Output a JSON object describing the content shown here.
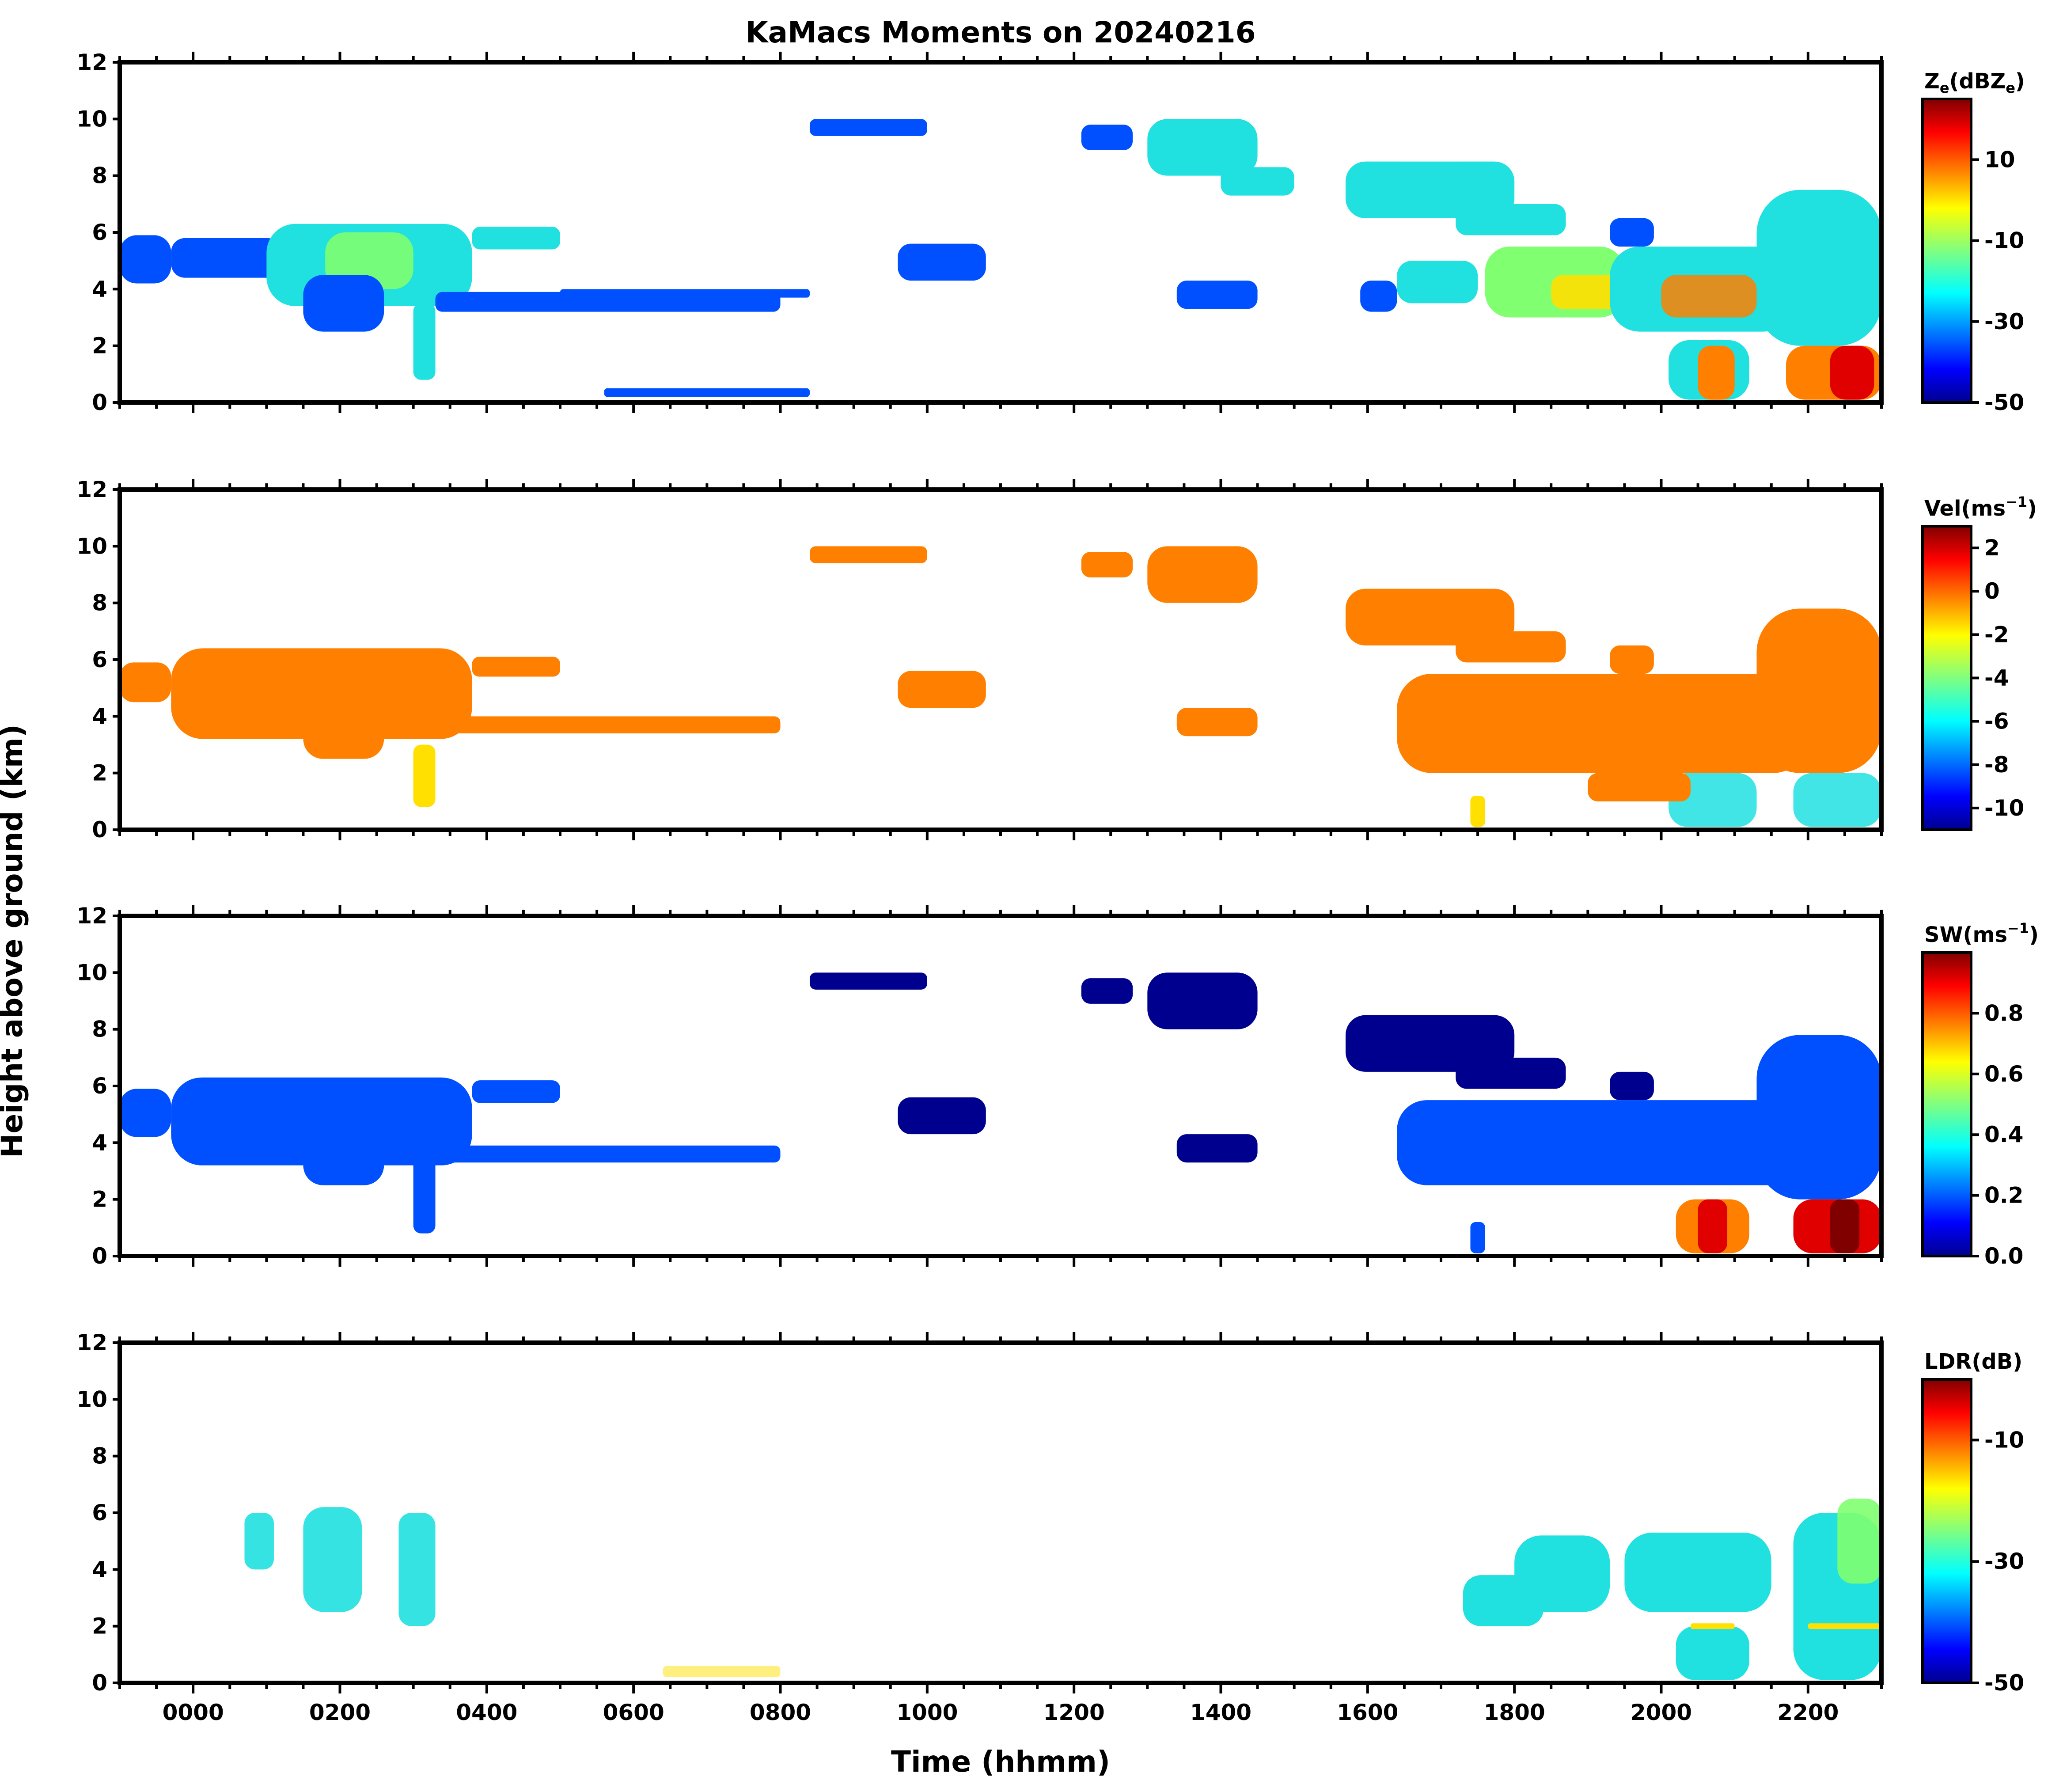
{
  "chart_data": {
    "type": "heatmap",
    "title": "KaMacs Moments on 20240216",
    "xlabel": "Time (hhmm)",
    "ylabel": "Height above ground (km)",
    "x_ticks": [
      "0000",
      "0200",
      "0400",
      "0600",
      "0800",
      "1000",
      "1200",
      "1400",
      "1600",
      "1800",
      "2000",
      "2200"
    ],
    "x_range": [
      -100,
      2300
    ],
    "y_ticks": [
      "0",
      "2",
      "4",
      "6",
      "8",
      "10",
      "12"
    ],
    "ylim": [
      0,
      12
    ],
    "panels": [
      {
        "name": "reflectivity",
        "colorbar_label": "Ze(dBZe)",
        "cbar_main": "Z",
        "cbar_sub1": "e",
        "cbar_mid": "(dBZ",
        "cbar_sub2": "e",
        "cbar_end": ")",
        "cbar_range": [
          -50,
          25
        ],
        "cbar_ticks": [
          "10",
          "-10",
          "-30",
          "-50"
        ],
        "cbar_tick_values": [
          10,
          -10,
          -30,
          -50
        ]
      },
      {
        "name": "velocity",
        "colorbar_label": "Vel(ms-1)",
        "cbar_main": "Vel(ms",
        "cbar_sup": "−1",
        "cbar_end": ")",
        "cbar_range": [
          -11,
          3
        ],
        "cbar_ticks": [
          "2",
          "0",
          "-2",
          "-4",
          "-6",
          "-8",
          "-10"
        ],
        "cbar_tick_values": [
          2,
          0,
          -2,
          -4,
          -6,
          -8,
          -10
        ]
      },
      {
        "name": "spectrum-width",
        "colorbar_label": "SW(ms-1)",
        "cbar_main": "SW(ms",
        "cbar_sup": "−1",
        "cbar_end": ")",
        "cbar_range": [
          0,
          1
        ],
        "cbar_ticks": [
          "0.8",
          "0.6",
          "0.4",
          "0.2",
          "0.0"
        ],
        "cbar_tick_values": [
          0.8,
          0.6,
          0.4,
          0.2,
          0.0
        ]
      },
      {
        "name": "ldr",
        "colorbar_label": "LDR(dB)",
        "cbar_main": "LDR(dB)",
        "cbar_range": [
          -50,
          0
        ],
        "cbar_ticks": [
          "-10",
          "-30",
          "-50"
        ],
        "cbar_tick_values": [
          -10,
          -30,
          -50
        ]
      }
    ]
  },
  "colors": {
    "jet_dark_blue": "#00008f",
    "jet_blue": "#0050ff",
    "jet_cyan": "#20e0e0",
    "jet_green": "#80ff70",
    "jet_yellow": "#ffe000",
    "jet_orange": "#ff8000",
    "jet_red": "#e00000",
    "jet_dark_red": "#800000"
  }
}
